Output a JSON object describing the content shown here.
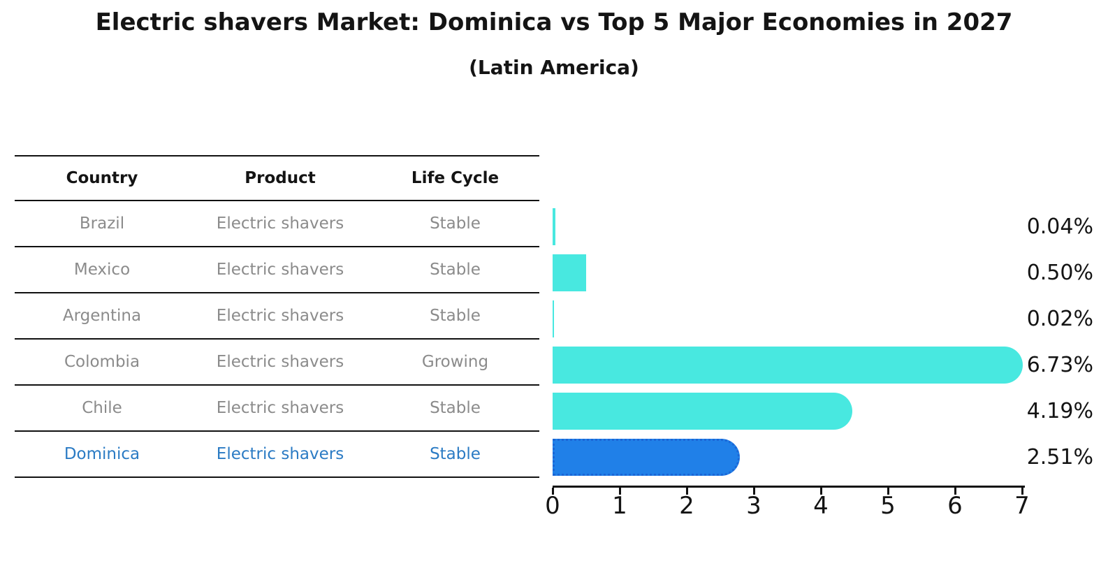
{
  "title": "Electric shavers Market: Dominica vs Top 5 Major Economies in 2027",
  "subtitle": "(Latin America)",
  "table": {
    "headers": [
      "Country",
      "Product",
      "Life Cycle"
    ],
    "rows": [
      {
        "country": "Brazil",
        "product": "Electric shavers",
        "life_cycle": "Stable",
        "highlight": false
      },
      {
        "country": "Mexico",
        "product": "Electric shavers",
        "life_cycle": "Stable",
        "highlight": false
      },
      {
        "country": "Argentina",
        "product": "Electric shavers",
        "life_cycle": "Stable",
        "highlight": false
      },
      {
        "country": "Colombia",
        "product": "Electric shavers",
        "life_cycle": "Growing",
        "highlight": false
      },
      {
        "country": "Chile",
        "product": "Electric shavers",
        "life_cycle": "Stable",
        "highlight": false
      },
      {
        "country": "Dominica",
        "product": "Electric shavers",
        "life_cycle": "Stable",
        "highlight": true
      }
    ]
  },
  "chart_data": {
    "type": "bar",
    "orientation": "horizontal",
    "title": "Electric shavers Market: Dominica vs Top 5 Major Economies in 2027",
    "subtitle": "(Latin America)",
    "categories": [
      "Brazil",
      "Mexico",
      "Argentina",
      "Colombia",
      "Chile",
      "Dominica"
    ],
    "values": [
      0.04,
      0.5,
      0.02,
      6.73,
      4.19,
      2.51
    ],
    "value_labels": [
      "0.04%",
      "0.50%",
      "0.02%",
      "6.73%",
      "4.19%",
      "2.51%"
    ],
    "xlim": [
      0,
      7
    ],
    "xticks": [
      "0",
      "1",
      "2",
      "3",
      "4",
      "5",
      "6",
      "7"
    ],
    "grid": false,
    "legend": false,
    "highlight_index": 5,
    "bar_color": "#48e8e0",
    "highlight_bar_color": "#2080e8",
    "highlight_border_color": "#1b66d6",
    "highlight_text_color": "#2b7bc4"
  }
}
